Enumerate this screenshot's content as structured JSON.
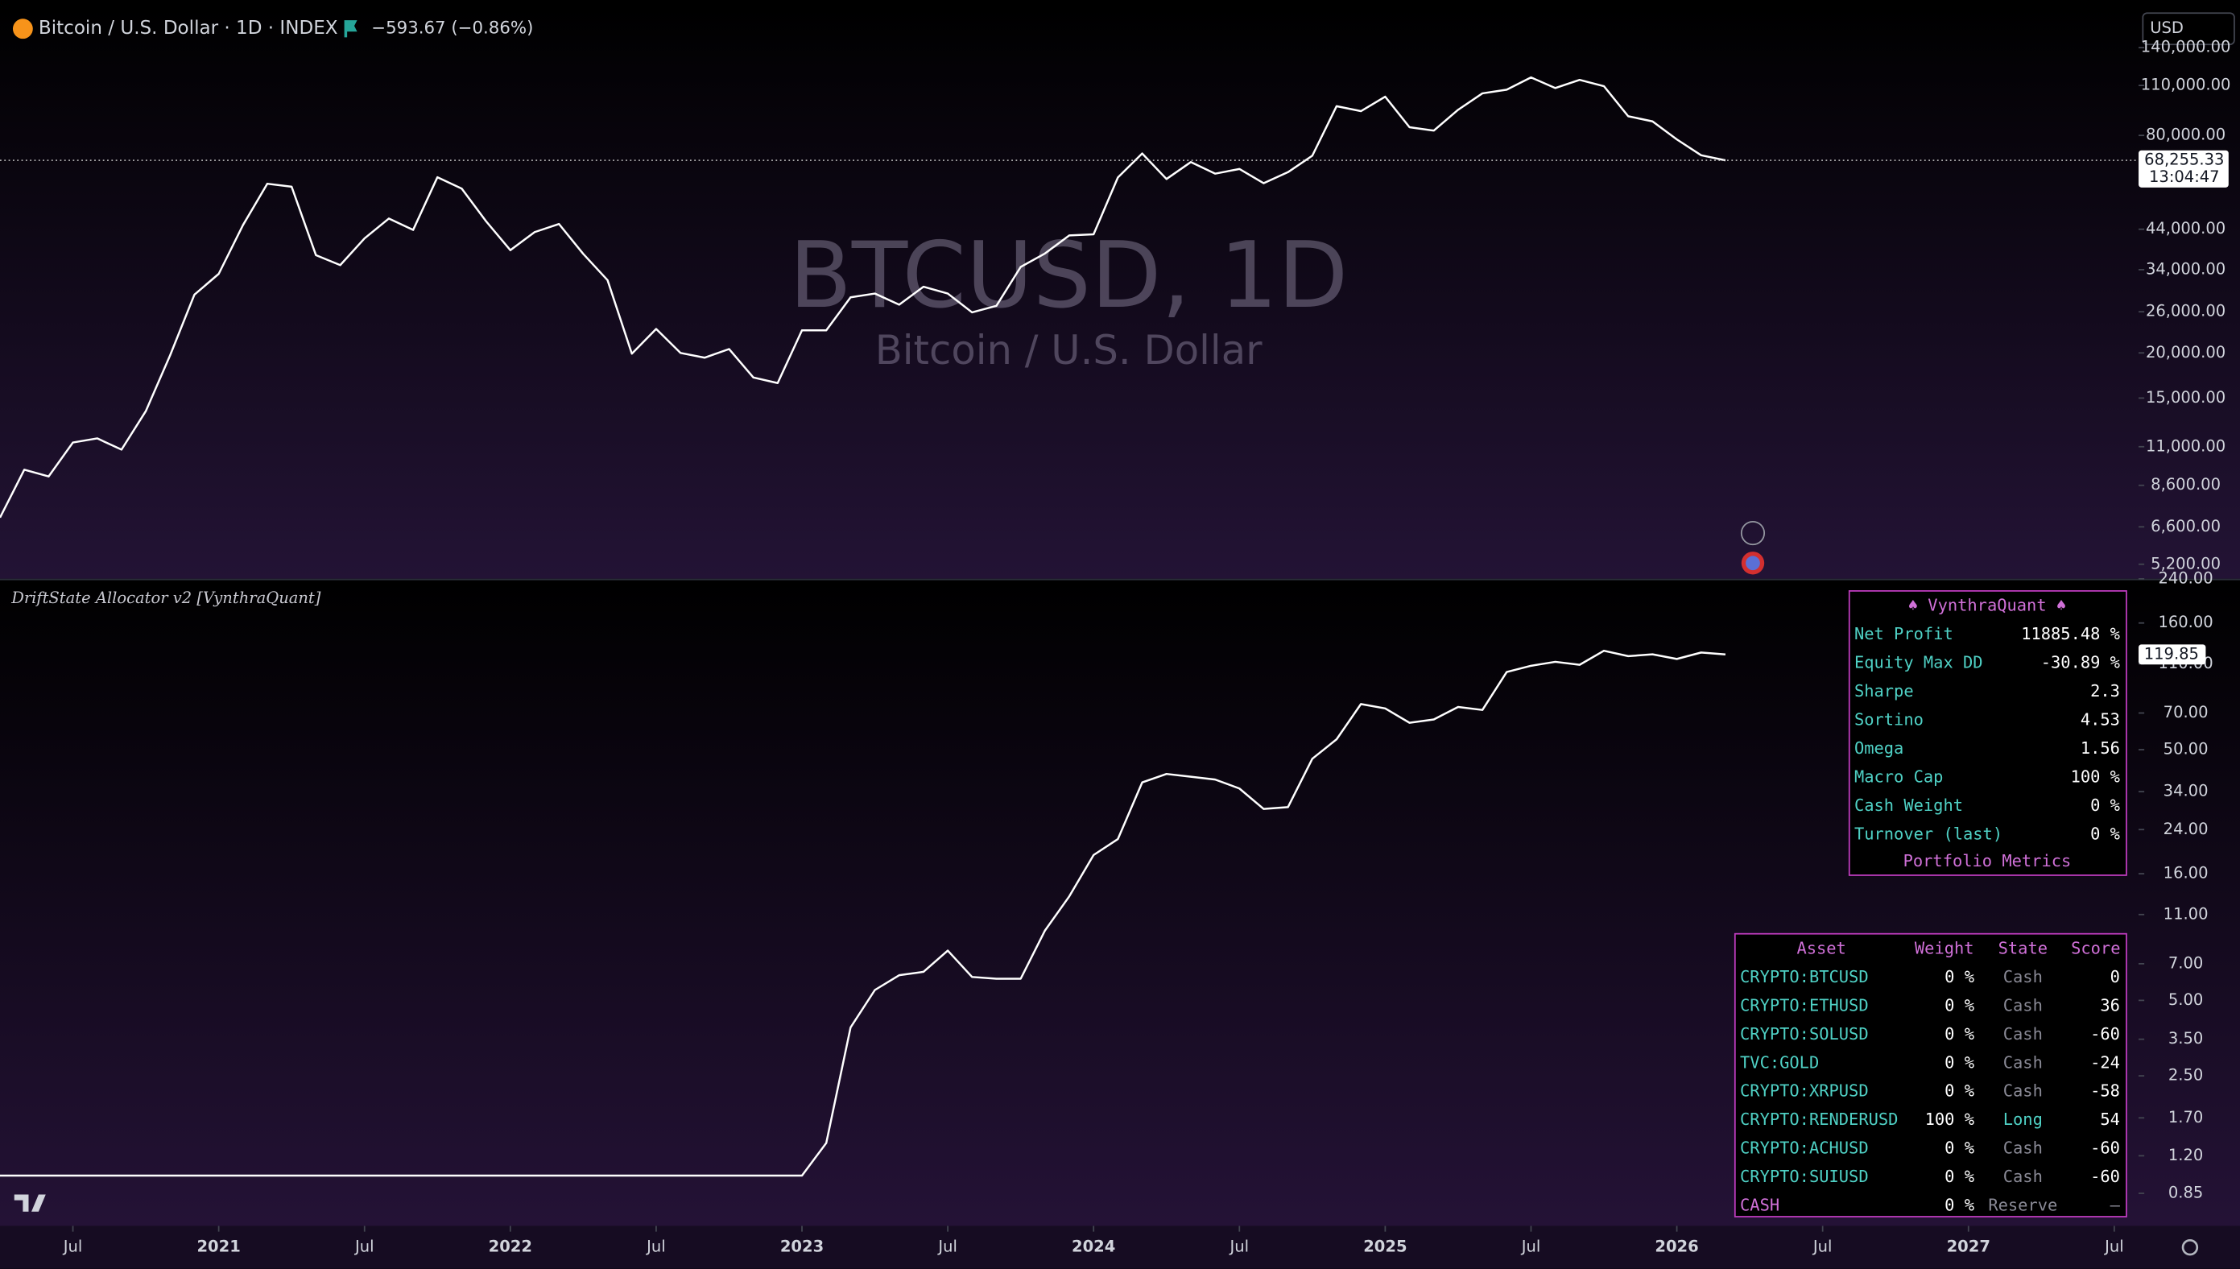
{
  "header": {
    "symbol": "Bitcoin / U.S. Dollar · 1D · INDEX",
    "change": "−593.67 (−0.86%)",
    "currency": "USD",
    "watermark": "BTCUSD, 1D",
    "watermark_sub": "Bitcoin / U.S. Dollar",
    "countdown": "13:04:47",
    "indicator": "DriftState Allocator v2 [VynthraQuant]"
  },
  "chart_data": [
    {
      "type": "line",
      "log_scale": true,
      "color": "#ffffff",
      "x": [
        "2020-04",
        "2020-05",
        "2020-06",
        "2020-07",
        "2020-08",
        "2020-09",
        "2020-10",
        "2020-11",
        "2020-12",
        "2021-01",
        "2021-02",
        "2021-03",
        "2021-04",
        "2021-05",
        "2021-06",
        "2021-07",
        "2021-08",
        "2021-09",
        "2021-10",
        "2021-11",
        "2021-12",
        "2022-01",
        "2022-02",
        "2022-03",
        "2022-04",
        "2022-05",
        "2022-06",
        "2022-07",
        "2022-08",
        "2022-09",
        "2022-10",
        "2022-11",
        "2022-12",
        "2023-01",
        "2023-02",
        "2023-03",
        "2023-04",
        "2023-05",
        "2023-06",
        "2023-07",
        "2023-08",
        "2023-09",
        "2023-10",
        "2023-11",
        "2023-12",
        "2024-01",
        "2024-02",
        "2024-03",
        "2024-04",
        "2024-05",
        "2024-06",
        "2024-07",
        "2024-08",
        "2024-09",
        "2024-10",
        "2024-11",
        "2024-12",
        "2025-01",
        "2025-02",
        "2025-03",
        "2025-04",
        "2025-05",
        "2025-06",
        "2025-07",
        "2025-08",
        "2025-09",
        "2025-10",
        "2025-11",
        "2025-12",
        "2026-01",
        "2026-02",
        "2026-03"
      ],
      "values": [
        7000,
        9500,
        9100,
        11300,
        11600,
        10800,
        13800,
        19700,
        29000,
        33100,
        45200,
        58800,
        57700,
        37300,
        35000,
        41500,
        47100,
        43800,
        61300,
        57000,
        46300,
        38500,
        43200,
        45500,
        37600,
        31800,
        19900,
        23300,
        20000,
        19400,
        20500,
        17100,
        16500,
        23100,
        23100,
        28500,
        29200,
        27200,
        30500,
        29200,
        25900,
        27000,
        34600,
        37700,
        42300,
        42600,
        61200,
        71300,
        60600,
        67500,
        62700,
        64600,
        59000,
        63300,
        70300,
        96400,
        93400,
        102400,
        84300,
        82500,
        94200,
        104600,
        107100,
        115800,
        108200,
        114000,
        109500,
        90400,
        87500,
        78000,
        70500,
        68255.33
      ],
      "last_price": {
        "value": 68255.33,
        "label": "68,255.33"
      },
      "xlim": [
        "2020-04",
        "2027-08"
      ],
      "ylim": [
        4740,
        181000
      ],
      "yticks": [
        {
          "value": 5200,
          "label": "5,200.00"
        },
        {
          "value": 6600,
          "label": "6,600.00"
        },
        {
          "value": 8600,
          "label": "8,600.00"
        },
        {
          "value": 11000,
          "label": "11,000.00"
        },
        {
          "value": 15000,
          "label": "15,000.00"
        },
        {
          "value": 20000,
          "label": "20,000.00"
        },
        {
          "value": 26000,
          "label": "26,000.00"
        },
        {
          "value": 34000,
          "label": "34,000.00"
        },
        {
          "value": 44000,
          "label": "44,000.00"
        },
        {
          "value": 80000,
          "label": "80,000.00"
        },
        {
          "value": 110000,
          "label": "110,000.00"
        },
        {
          "value": 140000,
          "label": "140,000.00"
        }
      ]
    },
    {
      "type": "line",
      "log_scale": true,
      "color": "#ffffff",
      "x": [
        "2020-04",
        "2023-01",
        "2023-02",
        "2023-03",
        "2023-04",
        "2023-05",
        "2023-06",
        "2023-07",
        "2023-08",
        "2023-09",
        "2023-10",
        "2023-11",
        "2023-12",
        "2024-01",
        "2024-02",
        "2024-03",
        "2024-04",
        "2024-05",
        "2024-06",
        "2024-07",
        "2024-08",
        "2024-09",
        "2024-10",
        "2024-11",
        "2024-12",
        "2025-01",
        "2025-02",
        "2025-03",
        "2025-04",
        "2025-05",
        "2025-06",
        "2025-07",
        "2025-08",
        "2025-09",
        "2025-10",
        "2025-11",
        "2025-12",
        "2026-01",
        "2026-02",
        "2026-03"
      ],
      "values": [
        1.0,
        1.0,
        1.35,
        3.9,
        5.5,
        6.3,
        6.5,
        7.9,
        6.2,
        6.1,
        6.1,
        9.5,
        13,
        19,
        22,
        37,
        40,
        39,
        38,
        35,
        29,
        29.5,
        46,
        55,
        76,
        73,
        64,
        66,
        74,
        72,
        102,
        108,
        112,
        109,
        124,
        118,
        120,
        115,
        122,
        119.85
      ],
      "xlim": [
        "2020-04",
        "2027-08"
      ],
      "ylim": [
        0.63,
        237
      ],
      "yticks": [
        0.85,
        {
          "value": 1.2,
          "label": "1.20"
        },
        {
          "value": 1.7,
          "label": "1.70"
        },
        {
          "value": 2.5,
          "label": "2.50"
        },
        {
          "value": 3.5,
          "label": "3.50"
        },
        {
          "value": 5,
          "label": "5.00"
        },
        {
          "value": 7,
          "label": "7.00"
        },
        {
          "value": 11,
          "label": "11.00"
        },
        {
          "value": 16,
          "label": "16.00"
        },
        {
          "value": 24,
          "label": "24.00"
        },
        {
          "value": 34,
          "label": "34.00"
        },
        {
          "value": 50,
          "label": "50.00"
        },
        {
          "value": 70,
          "label": "70.00"
        },
        {
          "value": 110,
          "label": "110.00"
        },
        {
          "value": 160,
          "label": "160.00"
        },
        {
          "value": 240,
          "label": "240.00"
        }
      ],
      "xticks": [
        {
          "value": "2020-07",
          "label": "Jul"
        },
        {
          "value": "2021-01",
          "label": "2021"
        },
        {
          "value": "2021-07",
          "label": "Jul"
        },
        {
          "value": "2022-01",
          "label": "2022"
        },
        {
          "value": "2022-07",
          "label": "Jul"
        },
        {
          "value": "2023-01",
          "label": "2023"
        },
        {
          "value": "2023-07",
          "label": "Jul"
        },
        {
          "value": "2024-01",
          "label": "2024"
        },
        {
          "value": "2024-07",
          "label": "Jul"
        },
        {
          "value": "2025-01",
          "label": "2025"
        },
        {
          "value": "2025-07",
          "label": "Jul"
        },
        {
          "value": "2026-01",
          "label": "2026"
        },
        {
          "value": "2026-07",
          "label": "Jul"
        },
        {
          "value": "2027-01",
          "label": "2027"
        },
        {
          "value": "2027-07",
          "label": "Jul"
        }
      ]
    }
  ],
  "metrics_table": {
    "title": "♠ VynthraQuant ♠",
    "rows": [
      [
        "Net Profit",
        "11885.48 %"
      ],
      [
        "Equity Max DD",
        "-30.89 %"
      ],
      [
        "Sharpe",
        "2.3"
      ],
      [
        "Sortino",
        "4.53"
      ],
      [
        "Omega",
        "1.56"
      ],
      [
        "Macro Cap",
        "100 %"
      ],
      [
        "Cash Weight",
        "0 %"
      ],
      [
        "Turnover (last)",
        "0 %"
      ]
    ],
    "footer": "Portfolio Metrics"
  },
  "asset_table": {
    "header": [
      "Asset",
      "Weight",
      "State",
      "Score"
    ],
    "rows": [
      [
        "CRYPTO:BTCUSD",
        "0 %",
        "Cash",
        "0"
      ],
      [
        "CRYPTO:ETHUSD",
        "0 %",
        "Cash",
        "36"
      ],
      [
        "CRYPTO:SOLUSD",
        "0 %",
        "Cash",
        "-60"
      ],
      [
        "TVC:GOLD",
        "0 %",
        "Cash",
        "-24"
      ],
      [
        "CRYPTO:XRPUSD",
        "0 %",
        "Cash",
        "-58"
      ],
      [
        "CRYPTO:RENDERUSD",
        "100 %",
        "Long",
        "54"
      ],
      [
        "CRYPTO:ACHUSD",
        "0 %",
        "Cash",
        "-60"
      ],
      [
        "CRYPTO:SUIUSD",
        "0 %",
        "Cash",
        "-60"
      ],
      [
        "CASH",
        "0 %",
        "Reserve",
        "–"
      ]
    ]
  }
}
